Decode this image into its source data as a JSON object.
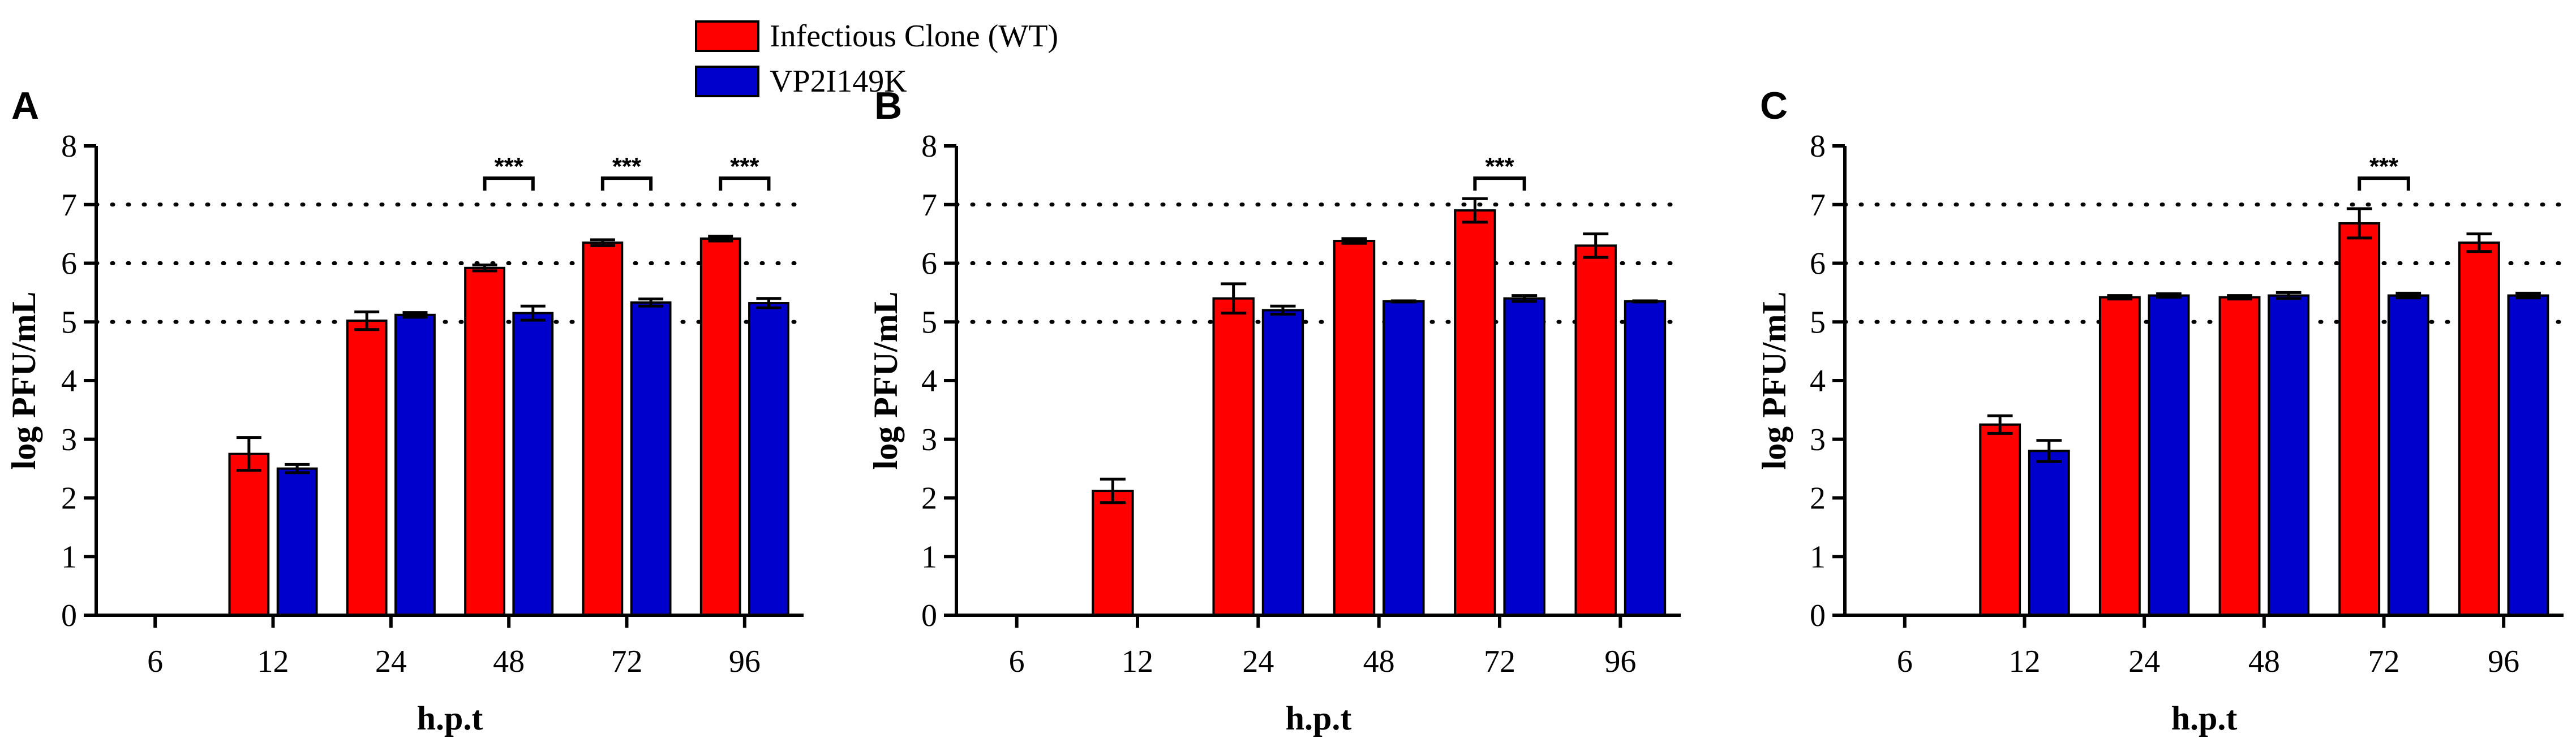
{
  "legend": {
    "items": [
      {
        "label": "Infectious Clone (WT)",
        "color": "#ff0000"
      },
      {
        "label": "VP2I149K",
        "color": "#0000cc"
      }
    ]
  },
  "chart_data": [
    {
      "type": "bar",
      "panel_label": "A",
      "xlabel": "h.p.t",
      "ylabel": "log PFU/mL",
      "ylim": [
        0,
        8
      ],
      "yticks": [
        0,
        1,
        2,
        3,
        4,
        5,
        6,
        7,
        8
      ],
      "reference_lines": [
        5,
        6,
        7
      ],
      "categories": [
        "6",
        "12",
        "24",
        "48",
        "72",
        "96"
      ],
      "series": [
        {
          "name": "Infectious Clone (WT)",
          "color": "#ff0000",
          "values": [
            0,
            2.75,
            5.02,
            5.92,
            6.35,
            6.42
          ],
          "errors": [
            0,
            0.28,
            0.15,
            0.05,
            0.05,
            0.04
          ]
        },
        {
          "name": "VP2I149K",
          "color": "#0000cc",
          "values": [
            0,
            2.5,
            5.12,
            5.15,
            5.33,
            5.32
          ],
          "errors": [
            0,
            0.07,
            0.04,
            0.12,
            0.06,
            0.08
          ]
        }
      ],
      "significance": [
        {
          "category": "48",
          "label": "***"
        },
        {
          "category": "72",
          "label": "***"
        },
        {
          "category": "96",
          "label": "***"
        }
      ]
    },
    {
      "type": "bar",
      "panel_label": "B",
      "xlabel": "h.p.t",
      "ylabel": "log PFU/mL",
      "ylim": [
        0,
        8
      ],
      "yticks": [
        0,
        1,
        2,
        3,
        4,
        5,
        6,
        7,
        8
      ],
      "reference_lines": [
        5,
        6,
        7
      ],
      "categories": [
        "6",
        "12",
        "24",
        "48",
        "72",
        "96"
      ],
      "series": [
        {
          "name": "Infectious Clone (WT)",
          "color": "#ff0000",
          "values": [
            0,
            2.12,
            5.4,
            6.38,
            6.9,
            6.3
          ],
          "errors": [
            0,
            0.2,
            0.25,
            0.04,
            0.2,
            0.2
          ]
        },
        {
          "name": "VP2I149K",
          "color": "#0000cc",
          "values": [
            0,
            0,
            5.2,
            5.35,
            5.4,
            5.35
          ],
          "errors": [
            0,
            0,
            0.07,
            0,
            0.05,
            0
          ]
        }
      ],
      "significance": [
        {
          "category": "72",
          "label": "***"
        }
      ]
    },
    {
      "type": "bar",
      "panel_label": "C",
      "xlabel": "h.p.t",
      "ylabel": "log PFU/mL",
      "ylim": [
        0,
        8
      ],
      "yticks": [
        0,
        1,
        2,
        3,
        4,
        5,
        6,
        7,
        8
      ],
      "reference_lines": [
        5,
        6,
        7
      ],
      "categories": [
        "6",
        "12",
        "24",
        "48",
        "72",
        "96"
      ],
      "series": [
        {
          "name": "Infectious Clone (WT)",
          "color": "#ff0000",
          "values": [
            0,
            3.25,
            5.42,
            5.42,
            6.68,
            6.35
          ],
          "errors": [
            0,
            0.15,
            0.03,
            0.03,
            0.25,
            0.15
          ]
        },
        {
          "name": "VP2I149K",
          "color": "#0000cc",
          "values": [
            0,
            2.8,
            5.45,
            5.45,
            5.45,
            5.45
          ],
          "errors": [
            0,
            0.18,
            0.03,
            0.05,
            0.04,
            0.04
          ]
        }
      ],
      "significance": [
        {
          "category": "72",
          "label": "***"
        }
      ]
    }
  ]
}
